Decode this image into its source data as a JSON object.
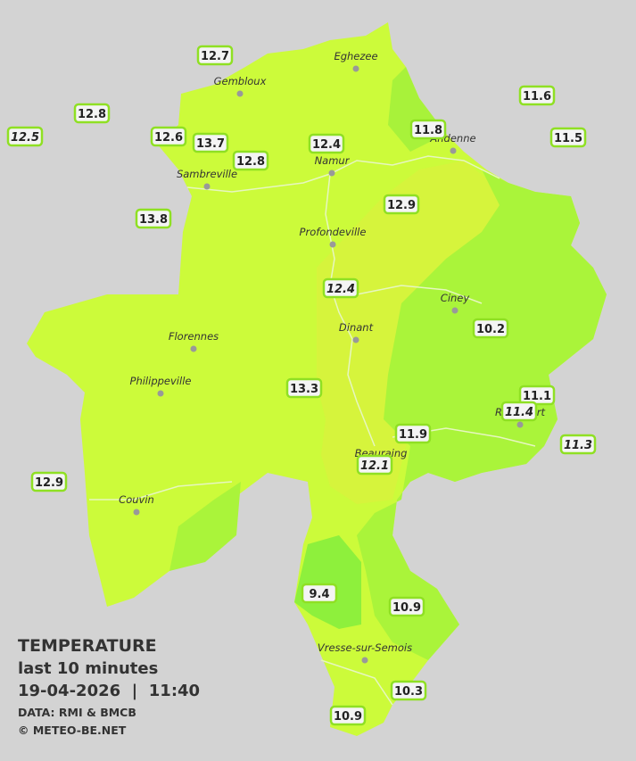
{
  "map": {
    "towns": [
      "Eghezee",
      "Gembloux",
      "Andenne",
      "Namur",
      "Sambreville",
      "Profondeville",
      "Ciney",
      "Florennes",
      "Dinant",
      "Philippeville",
      "Rochefort",
      "Beauraing",
      "Couvin",
      "Vresse-sur-Semois"
    ],
    "stations": [
      {
        "label": "12.7"
      },
      {
        "label": "12.8"
      },
      {
        "label": "12.5",
        "italic": true
      },
      {
        "label": "12.6"
      },
      {
        "label": "13.7"
      },
      {
        "label": "12.8"
      },
      {
        "label": "12.4"
      },
      {
        "label": "11.8"
      },
      {
        "label": "11.6"
      },
      {
        "label": "11.5"
      },
      {
        "label": "13.8"
      },
      {
        "label": "12.9"
      },
      {
        "label": "12.4",
        "italic": true
      },
      {
        "label": "10.2"
      },
      {
        "label": "11.1"
      },
      {
        "label": "11.4",
        "italic": true
      },
      {
        "label": "13.3"
      },
      {
        "label": "11.9"
      },
      {
        "label": "12.1",
        "italic": true
      },
      {
        "label": "11.3",
        "italic": true
      },
      {
        "label": "12.9"
      },
      {
        "label": "9.4"
      },
      {
        "label": "10.9"
      },
      {
        "label": "10.3"
      },
      {
        "label": "10.9"
      }
    ],
    "legend": {
      "title": "TEMPERATURE",
      "subtitle": "last 10 minutes",
      "datetime": "19-04-2026  |  11:40",
      "source": "DATA: RMI & BMCB",
      "credit": "© METEO-BE.NET"
    }
  }
}
